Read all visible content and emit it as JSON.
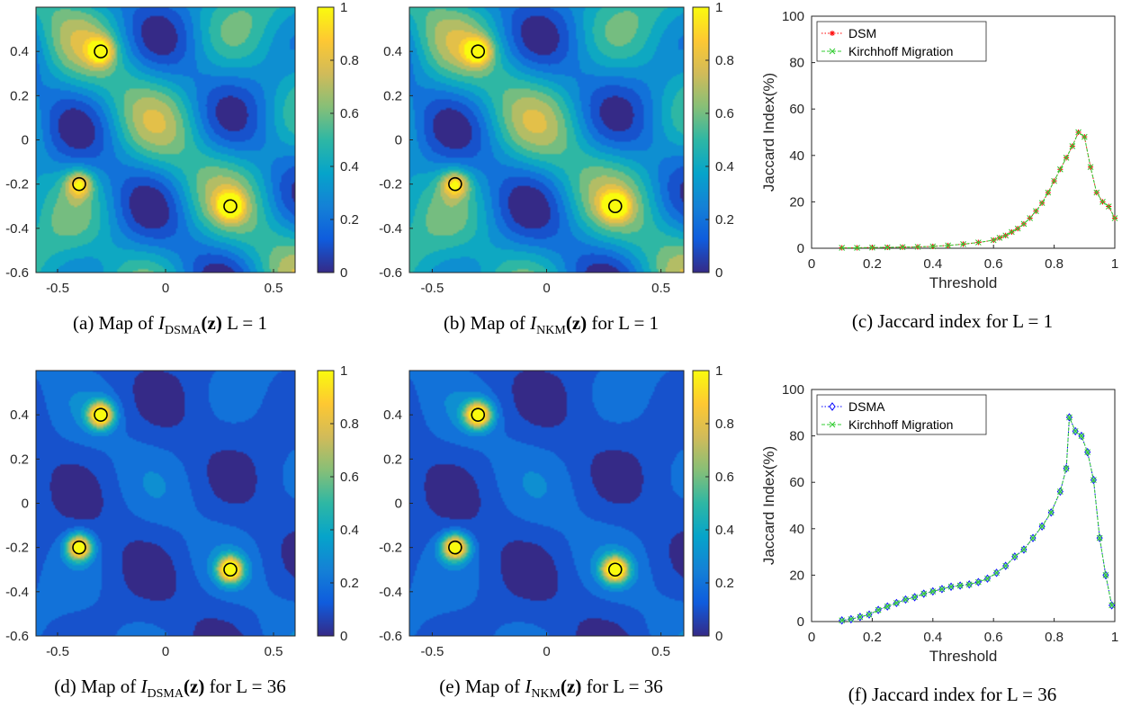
{
  "colormap": [
    "#352a87",
    "#0f5cdd",
    "#1481d6",
    "#06a4ca",
    "#2eb7a4",
    "#87bf77",
    "#d1bb59",
    "#fec832",
    "#f9fb0e"
  ],
  "colorbar_ticks": [
    "0",
    "0.2",
    "0.4",
    "0.6",
    "0.8",
    "1"
  ],
  "maps": [
    {
      "id": "a",
      "caption": {
        "label": "(a) Map of",
        "sym": "I",
        "sub": "DSMA",
        "arg": "(z)",
        "tail": " L = 1"
      },
      "x_ticks": [
        "-0.5",
        "0",
        "0.5"
      ],
      "y_ticks": [
        "0.4",
        "0.2",
        "0",
        "-0.2",
        "-0.4",
        "-0.6"
      ],
      "peak_scale": 0.55,
      "background": 0.35,
      "lobe_strength": 0.55
    },
    {
      "id": "b",
      "caption": {
        "label": "(b) Map of",
        "sym": "I",
        "sub": "NKM",
        "arg": "(z)",
        "tail": " for L = 1"
      },
      "x_ticks": [
        "-0.5",
        "0",
        "0.5"
      ],
      "y_ticks": [
        "0.4",
        "0.2",
        "0",
        "-0.2",
        "-0.4",
        "-0.6"
      ],
      "peak_scale": 0.55,
      "background": 0.35,
      "lobe_strength": 0.55
    },
    {
      "id": "d",
      "caption": {
        "label": "(d) Map of",
        "sym": "I",
        "sub": "DSMA",
        "arg": "(z)",
        "tail": " for L = 36"
      },
      "x_ticks": [
        "-0.5",
        "0",
        "0.5"
      ],
      "y_ticks": [
        "0.4",
        "0.2",
        "0",
        "-0.2",
        "-0.4",
        "-0.6"
      ],
      "peak_scale": 1.0,
      "background": 0.12,
      "lobe_strength": 0.18
    },
    {
      "id": "e",
      "caption": {
        "label": "(e) Map of",
        "sym": "I",
        "sub": "NKM",
        "arg": "(z)",
        "tail": " for L = 36"
      },
      "x_ticks": [
        "-0.5",
        "0",
        "0.5"
      ],
      "y_ticks": [
        "0.4",
        "0.2",
        "0",
        "-0.2",
        "-0.4",
        "-0.6"
      ],
      "peak_scale": 1.0,
      "background": 0.12,
      "lobe_strength": 0.18
    }
  ],
  "targets": [
    {
      "x": -0.3,
      "y": 0.4
    },
    {
      "x": -0.4,
      "y": -0.2
    },
    {
      "x": 0.3,
      "y": -0.3
    }
  ],
  "chart_data": [
    {
      "type": "line",
      "id": "c",
      "caption": "(c) Jaccard index for L = 1",
      "xlabel": "Threshold",
      "ylabel": "Jaccard Index(%)",
      "xlim": [
        0,
        1
      ],
      "ylim": [
        0,
        100
      ],
      "x_ticks": [
        "0",
        "0.2",
        "0.4",
        "0.6",
        "0.8",
        "1"
      ],
      "y_ticks": [
        "0",
        "20",
        "40",
        "60",
        "80",
        "100"
      ],
      "legend_position": "top-left",
      "series": [
        {
          "name": "DSM",
          "color": "#ff0000",
          "marker": "star",
          "x": [
            0.1,
            0.15,
            0.2,
            0.25,
            0.3,
            0.35,
            0.4,
            0.45,
            0.5,
            0.55,
            0.6,
            0.62,
            0.64,
            0.66,
            0.68,
            0.7,
            0.72,
            0.74,
            0.76,
            0.78,
            0.8,
            0.82,
            0.84,
            0.86,
            0.88,
            0.9,
            0.92,
            0.94,
            0.96,
            0.98,
            1.0
          ],
          "y": [
            0.2,
            0.2,
            0.3,
            0.4,
            0.5,
            0.6,
            0.8,
            1.2,
            1.8,
            2.5,
            3.5,
            4.5,
            5.5,
            7,
            8.5,
            10.5,
            13,
            16,
            19.5,
            24,
            29,
            34,
            39,
            44,
            50,
            48,
            35,
            24,
            20,
            18,
            13
          ]
        },
        {
          "name": "Kirchhoff Migration",
          "color": "#33cc33",
          "marker": "x",
          "x": [
            0.1,
            0.15,
            0.2,
            0.25,
            0.3,
            0.35,
            0.4,
            0.45,
            0.5,
            0.55,
            0.6,
            0.62,
            0.64,
            0.66,
            0.68,
            0.7,
            0.72,
            0.74,
            0.76,
            0.78,
            0.8,
            0.82,
            0.84,
            0.86,
            0.88,
            0.9,
            0.92,
            0.94,
            0.96,
            0.98,
            1.0
          ],
          "y": [
            0.2,
            0.2,
            0.3,
            0.4,
            0.5,
            0.6,
            0.8,
            1.2,
            1.8,
            2.5,
            3.5,
            4.5,
            5.5,
            7,
            8.5,
            10.5,
            13,
            16,
            19.5,
            24,
            29,
            34,
            39,
            44,
            50,
            48,
            35,
            24,
            20,
            18,
            13
          ]
        }
      ]
    },
    {
      "type": "line",
      "id": "f",
      "caption": "(f) Jaccard index for L = 36",
      "xlabel": "Threshold",
      "ylabel": "Jaccard Index(%)",
      "xlim": [
        0,
        1
      ],
      "ylim": [
        0,
        100
      ],
      "x_ticks": [
        "0",
        "0.2",
        "0.4",
        "0.6",
        "0.8",
        "1"
      ],
      "y_ticks": [
        "0",
        "20",
        "40",
        "60",
        "80",
        "100"
      ],
      "legend_position": "top-left",
      "series": [
        {
          "name": "DSMA",
          "color": "#0000ff",
          "marker": "diamond",
          "x": [
            0.1,
            0.13,
            0.16,
            0.19,
            0.22,
            0.25,
            0.28,
            0.31,
            0.34,
            0.37,
            0.4,
            0.43,
            0.46,
            0.49,
            0.52,
            0.55,
            0.58,
            0.61,
            0.64,
            0.67,
            0.7,
            0.73,
            0.76,
            0.79,
            0.82,
            0.84,
            0.85,
            0.87,
            0.89,
            0.91,
            0.93,
            0.95,
            0.97,
            0.99
          ],
          "y": [
            0.5,
            1,
            2,
            3,
            5,
            6.5,
            8,
            9.5,
            10.5,
            12,
            13,
            14,
            15,
            15.5,
            16,
            17,
            18.5,
            21,
            24,
            28,
            31,
            36,
            41,
            47,
            56,
            66,
            88,
            82,
            80,
            73,
            61,
            36,
            20,
            7
          ]
        },
        {
          "name": "Kirchhoff Migration",
          "color": "#33cc33",
          "marker": "x",
          "x": [
            0.1,
            0.13,
            0.16,
            0.19,
            0.22,
            0.25,
            0.28,
            0.31,
            0.34,
            0.37,
            0.4,
            0.43,
            0.46,
            0.49,
            0.52,
            0.55,
            0.58,
            0.61,
            0.64,
            0.67,
            0.7,
            0.73,
            0.76,
            0.79,
            0.82,
            0.84,
            0.85,
            0.87,
            0.89,
            0.91,
            0.93,
            0.95,
            0.97,
            0.99
          ],
          "y": [
            0.5,
            1,
            2,
            3,
            5,
            6.5,
            8,
            9.5,
            10.5,
            12,
            13,
            14,
            15,
            15.5,
            16,
            17,
            18.5,
            21,
            24,
            28,
            31,
            36,
            41,
            47,
            56,
            66,
            88,
            82,
            80,
            73,
            61,
            36,
            20,
            7
          ]
        }
      ]
    }
  ]
}
